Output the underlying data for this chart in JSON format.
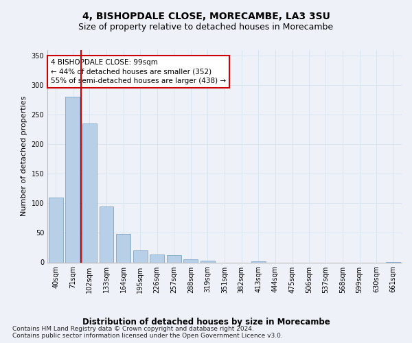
{
  "title": "4, BISHOPDALE CLOSE, MORECAMBE, LA3 3SU",
  "subtitle": "Size of property relative to detached houses in Morecambe",
  "xlabel": "Distribution of detached houses by size in Morecambe",
  "ylabel": "Number of detached properties",
  "categories": [
    "40sqm",
    "71sqm",
    "102sqm",
    "133sqm",
    "164sqm",
    "195sqm",
    "226sqm",
    "257sqm",
    "288sqm",
    "319sqm",
    "351sqm",
    "382sqm",
    "413sqm",
    "444sqm",
    "475sqm",
    "506sqm",
    "537sqm",
    "568sqm",
    "599sqm",
    "630sqm",
    "661sqm"
  ],
  "values": [
    110,
    280,
    235,
    95,
    48,
    20,
    13,
    12,
    5,
    3,
    0,
    0,
    2,
    0,
    0,
    0,
    0,
    0,
    0,
    0,
    1
  ],
  "bar_color": "#b8cfe8",
  "bar_edge_color": "#7099bb",
  "grid_color": "#d8e4f0",
  "background_color": "#eef2f8",
  "vline_x_index": 2,
  "vline_color": "#cc0000",
  "annotation_text": "4 BISHOPDALE CLOSE: 99sqm\n← 44% of detached houses are smaller (352)\n55% of semi-detached houses are larger (438) →",
  "annotation_box_color": "#ffffff",
  "annotation_box_edge": "#cc0000",
  "ylim": [
    0,
    360
  ],
  "yticks": [
    0,
    50,
    100,
    150,
    200,
    250,
    300,
    350
  ],
  "footer_line1": "Contains HM Land Registry data © Crown copyright and database right 2024.",
  "footer_line2": "Contains public sector information licensed under the Open Government Licence v3.0.",
  "title_fontsize": 10,
  "subtitle_fontsize": 9,
  "ylabel_fontsize": 8,
  "xlabel_fontsize": 8.5,
  "tick_fontsize": 7,
  "annotation_fontsize": 7.5,
  "footer_fontsize": 6.5
}
